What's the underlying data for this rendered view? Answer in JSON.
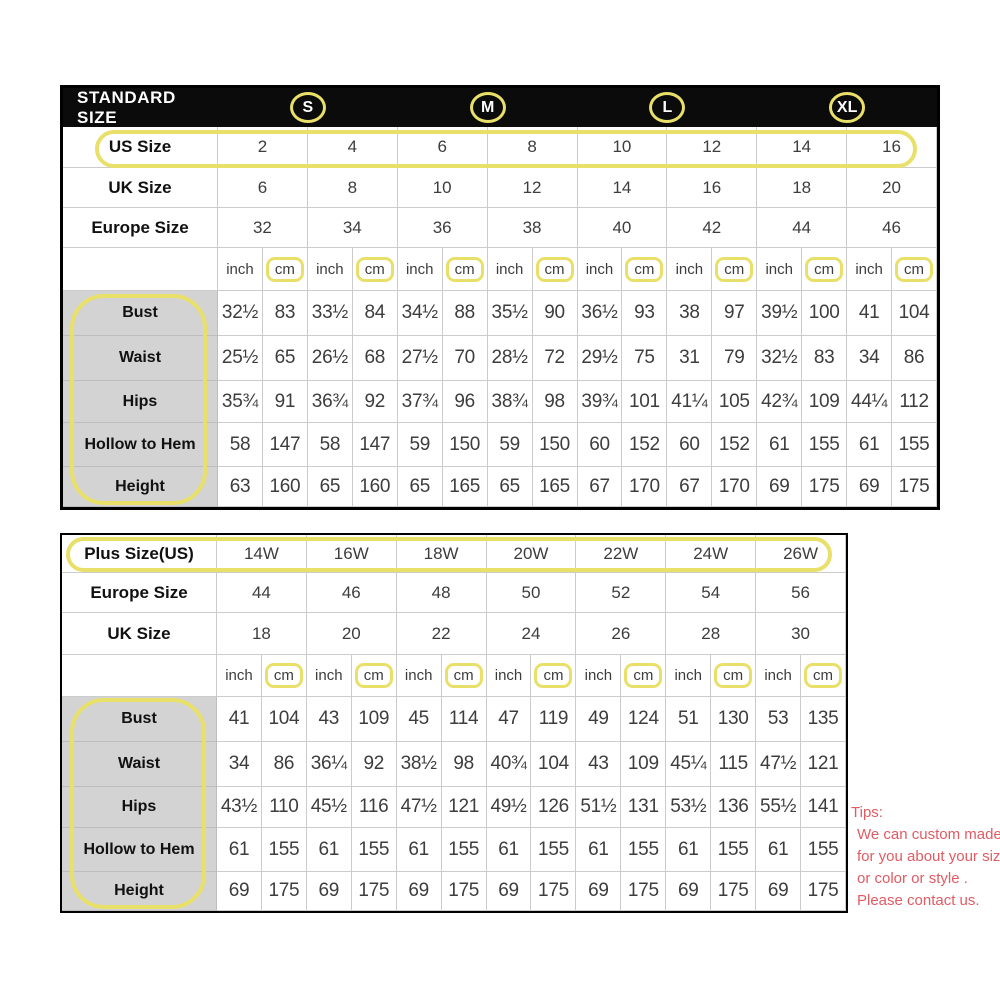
{
  "standard_table": {
    "title": "STANDARD SIZE",
    "size_groups": [
      "S",
      "M",
      "L",
      "XL"
    ],
    "us_size": {
      "label": "US Size",
      "values": [
        "2",
        "4",
        "6",
        "8",
        "10",
        "12",
        "14",
        "16"
      ]
    },
    "uk_size": {
      "label": "UK Size",
      "values": [
        "6",
        "8",
        "10",
        "12",
        "14",
        "16",
        "18",
        "20"
      ]
    },
    "europe_size": {
      "label": "Europe Size",
      "values": [
        "32",
        "34",
        "36",
        "38",
        "40",
        "42",
        "44",
        "46"
      ]
    },
    "units": [
      "inch",
      "cm",
      "inch",
      "cm",
      "inch",
      "cm",
      "inch",
      "cm",
      "inch",
      "cm",
      "inch",
      "cm",
      "inch",
      "cm",
      "inch",
      "cm"
    ],
    "measurements": [
      {
        "label": "Bust",
        "values": [
          "32½",
          "83",
          "33½",
          "84",
          "34½",
          "88",
          "35½",
          "90",
          "36½",
          "93",
          "38",
          "97",
          "39½",
          "100",
          "41",
          "104"
        ]
      },
      {
        "label": "Waist",
        "values": [
          "25½",
          "65",
          "26½",
          "68",
          "27½",
          "70",
          "28½",
          "72",
          "29½",
          "75",
          "31",
          "79",
          "32½",
          "83",
          "34",
          "86"
        ]
      },
      {
        "label": "Hips",
        "values": [
          "35¾",
          "91",
          "36¾",
          "92",
          "37¾",
          "96",
          "38¾",
          "98",
          "39¾",
          "101",
          "41¼",
          "105",
          "42¾",
          "109",
          "44¼",
          "112"
        ]
      },
      {
        "label": "Hollow to Hem",
        "values": [
          "58",
          "147",
          "58",
          "147",
          "59",
          "150",
          "59",
          "150",
          "60",
          "152",
          "60",
          "152",
          "61",
          "155",
          "61",
          "155"
        ]
      },
      {
        "label": "Height",
        "values": [
          "63",
          "160",
          "65",
          "160",
          "65",
          "165",
          "65",
          "165",
          "67",
          "170",
          "67",
          "170",
          "69",
          "175",
          "69",
          "175"
        ]
      }
    ]
  },
  "plus_table": {
    "plus_size": {
      "label": "Plus Size(US)",
      "values": [
        "14W",
        "16W",
        "18W",
        "20W",
        "22W",
        "24W",
        "26W"
      ]
    },
    "europe_size": {
      "label": "Europe Size",
      "values": [
        "44",
        "46",
        "48",
        "50",
        "52",
        "54",
        "56"
      ]
    },
    "uk_size": {
      "label": "UK Size",
      "values": [
        "18",
        "20",
        "22",
        "24",
        "26",
        "28",
        "30"
      ]
    },
    "units": [
      "inch",
      "cm",
      "inch",
      "cm",
      "inch",
      "cm",
      "inch",
      "cm",
      "inch",
      "cm",
      "inch",
      "cm",
      "inch",
      "cm"
    ],
    "measurements": [
      {
        "label": "Bust",
        "values": [
          "41",
          "104",
          "43",
          "109",
          "45",
          "114",
          "47",
          "119",
          "49",
          "124",
          "51",
          "130",
          "53",
          "135"
        ]
      },
      {
        "label": "Waist",
        "values": [
          "34",
          "86",
          "36¼",
          "92",
          "38½",
          "98",
          "40¾",
          "104",
          "43",
          "109",
          "45¼",
          "115",
          "47½",
          "121"
        ]
      },
      {
        "label": "Hips",
        "values": [
          "43½",
          "110",
          "45½",
          "116",
          "47½",
          "121",
          "49½",
          "126",
          "51½",
          "131",
          "53½",
          "136",
          "55½",
          "141"
        ]
      },
      {
        "label": "Hollow to Hem",
        "values": [
          "61",
          "155",
          "61",
          "155",
          "61",
          "155",
          "61",
          "155",
          "61",
          "155",
          "61",
          "155",
          "61",
          "155"
        ]
      },
      {
        "label": "Height",
        "values": [
          "69",
          "175",
          "69",
          "175",
          "69",
          "175",
          "69",
          "175",
          "69",
          "175",
          "69",
          "175",
          "69",
          "175"
        ]
      }
    ]
  },
  "tips": {
    "title": "Tips:",
    "lines": [
      "We can custom made",
      "for you about your size",
      "or color or style .",
      "Please contact us."
    ]
  },
  "colors": {
    "highlight": "#e9e069",
    "tips_red": "#e15b63",
    "label_bg": "#d3d3d3",
    "header_bg": "#0b0b0b"
  }
}
